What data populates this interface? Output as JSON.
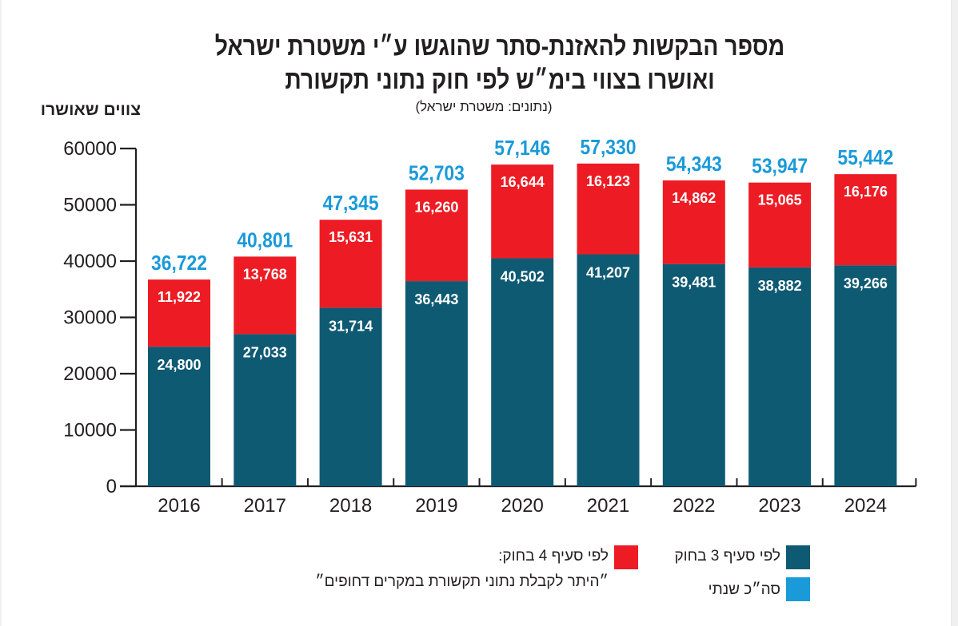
{
  "chart_data": {
    "type": "bar",
    "stacked": true,
    "title": "מספר הבקשות להאזנת-סתר שהוגשו ע\"י משטרת ישראל ואושרו בצווי בימ\"ש לפי חוק נתוני תקשורת",
    "title_lines": [
      "מספר הבקשות להאזנת-סתר שהוגשו ע״י משטרת ישראל",
      "ואושרו בצווי בימ״ש לפי חוק נתוני תקשורת"
    ],
    "subtitle": "(נתונים: משטרת ישראל)",
    "xlabel": "",
    "ylabel": "צווים שאושרו",
    "ylim": [
      0,
      60000
    ],
    "yticks": [
      "0",
      "10000",
      "20000",
      "30000",
      "40000",
      "50000",
      "60000"
    ],
    "grid": false,
    "categories": [
      "2016",
      "2017",
      "2018",
      "2019",
      "2020",
      "2021",
      "2022",
      "2023",
      "2024"
    ],
    "series": [
      {
        "name": "לפי סעיף 3 בחוק",
        "color": "#0f5a73",
        "values": [
          24800,
          27033,
          31714,
          36443,
          40502,
          41207,
          39481,
          38882,
          39266
        ],
        "labels": [
          "24,800",
          "27,033",
          "31,714",
          "36,443",
          "40,502",
          "41,207",
          "39,481",
          "38,882",
          "39,266"
        ]
      },
      {
        "name": "לפי סעיף 4 בחוק: \"היתר לקבלת נתוני תקשורת במקרים דחופים\"",
        "color": "#ed1c24",
        "values": [
          11922,
          13768,
          15631,
          16260,
          16644,
          16123,
          14862,
          15065,
          16176
        ],
        "labels": [
          "11,922",
          "13,768",
          "15,631",
          "16,260",
          "16,644",
          "16,123",
          "14,862",
          "15,065",
          "16,176"
        ]
      }
    ],
    "totals": {
      "name": "סה״כ שנתי",
      "color": "#1a9ad9",
      "values": [
        36722,
        40801,
        47345,
        52703,
        57146,
        57330,
        54343,
        53947,
        55442
      ],
      "labels": [
        "36,722",
        "40,801",
        "47,345",
        "52,703",
        "57,146",
        "57,330",
        "54,343",
        "53,947",
        "55,442"
      ]
    },
    "legend_position": "bottom-right"
  },
  "legend": {
    "section3": "לפי סעיף 3 בחוק",
    "section4_line1": "לפי סעיף 4 בחוק:",
    "section4_line2": "״היתר לקבלת נתוני תקשורת במקרים דחופים״",
    "total": "סה״כ שנתי"
  }
}
